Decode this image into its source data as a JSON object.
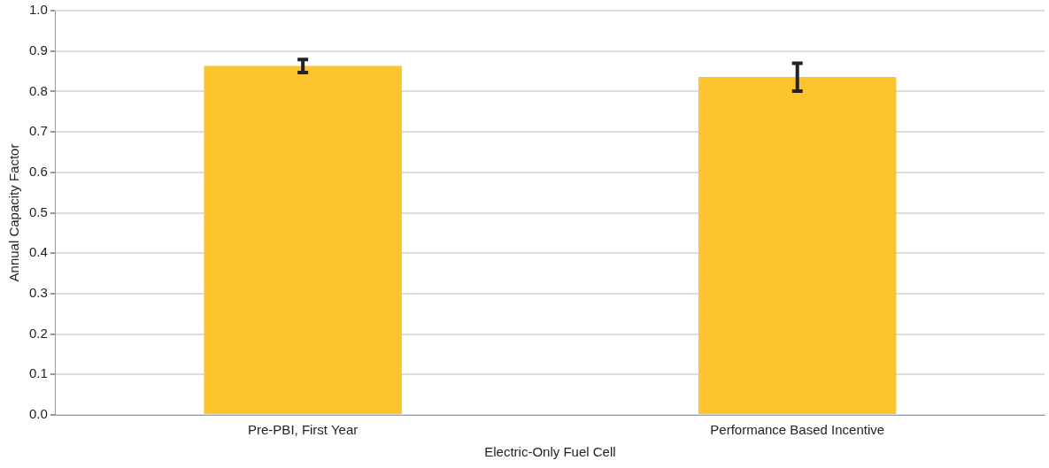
{
  "chart_data": {
    "type": "bar",
    "xlabel": "Electric-Only Fuel Cell",
    "ylabel": "Annual Capacity Factor",
    "categories": [
      "Pre-PBI, First Year",
      "Performance Based Incentive"
    ],
    "values": [
      0.863,
      0.836
    ],
    "errors": [
      0.016,
      [
        0.801,
        0.87
      ]
    ],
    "color": "#fec42d",
    "ylim": [
      0,
      1
    ],
    "yticks": [
      {
        "value": 0,
        "label": "0.0"
      },
      {
        "value": 0.1,
        "label": "0.1"
      },
      {
        "value": 0.2,
        "label": "0.2"
      },
      {
        "value": 0.3,
        "label": "0.3"
      },
      {
        "value": 0.4,
        "label": "0.4"
      },
      {
        "value": 0.5,
        "label": "0.5"
      },
      {
        "value": 0.6,
        "label": "0.6"
      },
      {
        "value": 0.7,
        "label": "0.7"
      },
      {
        "value": 0.8,
        "label": "0.8"
      },
      {
        "value": 0.9,
        "label": "0.9"
      },
      {
        "value": 1,
        "label": "1.0"
      }
    ],
    "grid": "y"
  }
}
